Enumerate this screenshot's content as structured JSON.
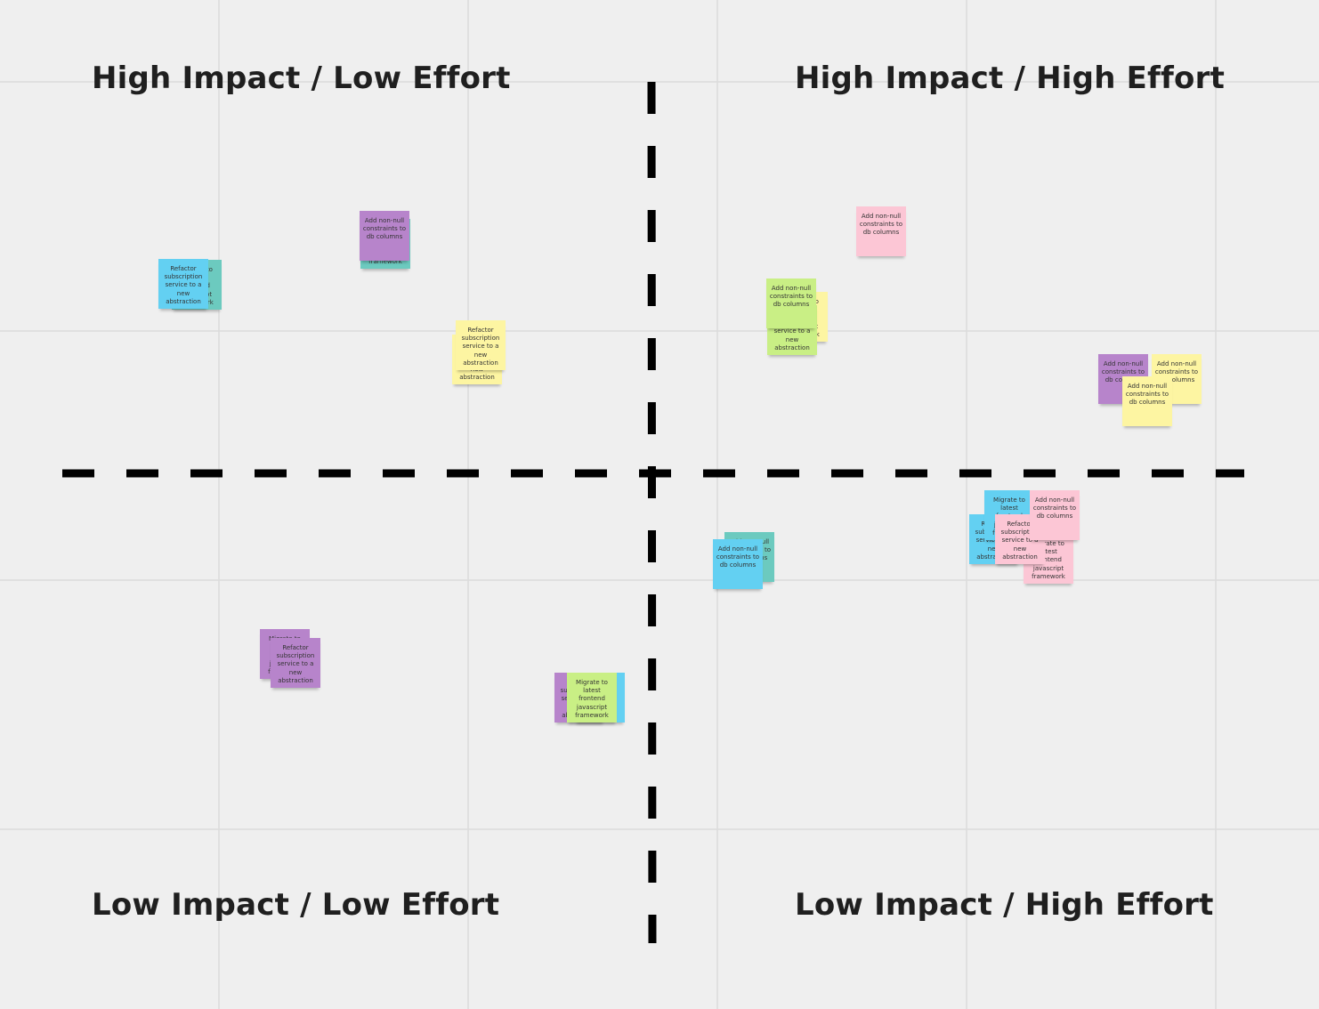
{
  "quadrants": [
    {
      "title": "High Impact / Low Effort"
    },
    {
      "title": "High Impact / High Effort"
    },
    {
      "title": "Low Impact / Low Effort"
    },
    {
      "title": "Low Impact / High Effort"
    }
  ],
  "notes": [
    {
      "text": "Migrate to latest frontend javascript framework",
      "color": "#6ccabf"
    },
    {
      "text": "Refactor subscription service to a new abstraction",
      "color": "#63d0f2"
    },
    {
      "text": "Migrate to latest frontend javascript framework",
      "color": "#6ccabf"
    },
    {
      "text": "Add non-null constraints to db columns",
      "color": "#b784cb"
    },
    {
      "text": "Refactor subscription service to a new abstraction",
      "color": "#fdf5a2"
    },
    {
      "text": "Refactor subscription service to a new abstraction",
      "color": "#fdf5a2"
    },
    {
      "text": "Add non-null constraints to db columns",
      "color": "#fcc6d5"
    },
    {
      "text": "Migrate to latest frontend javascript framework",
      "color": "#fdf5a2"
    },
    {
      "text": "Refactor subscription service to a new abstraction",
      "color": "#c9ef85"
    },
    {
      "text": "Add non-null constraints to db columns",
      "color": "#c9ef85"
    },
    {
      "text": "Add non-null constraints to db columns",
      "color": "#b784cb"
    },
    {
      "text": "Add non-null constraints to db columns",
      "color": "#fdf5a2"
    },
    {
      "text": "Add non-null constraints to db columns",
      "color": "#fdf5a2"
    },
    {
      "text": "Add non-null constraints to db columns",
      "color": "#6ccabf"
    },
    {
      "text": "Add non-null constraints to db columns",
      "color": "#63d0f2"
    },
    {
      "text": "Refactor subscription service to a new abstraction",
      "color": "#63d0f2"
    },
    {
      "text": "Migrate to latest frontend javascript framework",
      "color": "#63d0f2"
    },
    {
      "text": "Migrate to latest frontend javascript framework",
      "color": "#fcc6d5"
    },
    {
      "text": "Refactor subscription service to a new abstraction",
      "color": "#fcc6d5"
    },
    {
      "text": "Add non-null constraints to db columns",
      "color": "#fcc6d5"
    },
    {
      "text": "Migrate to latest frontend javascript framework",
      "color": "#b784cb"
    },
    {
      "text": "Refactor subscription service to a new abstraction",
      "color": "#b784cb"
    },
    {
      "text": "Refactor subscription service to a new abstraction",
      "color": "#b784cb"
    },
    {
      "text": "Migrate to latest frontend javascript framework",
      "color": "#63d0f2"
    },
    {
      "text": "Migrate to latest frontend javascript framework",
      "color": "#c9ef85"
    }
  ]
}
